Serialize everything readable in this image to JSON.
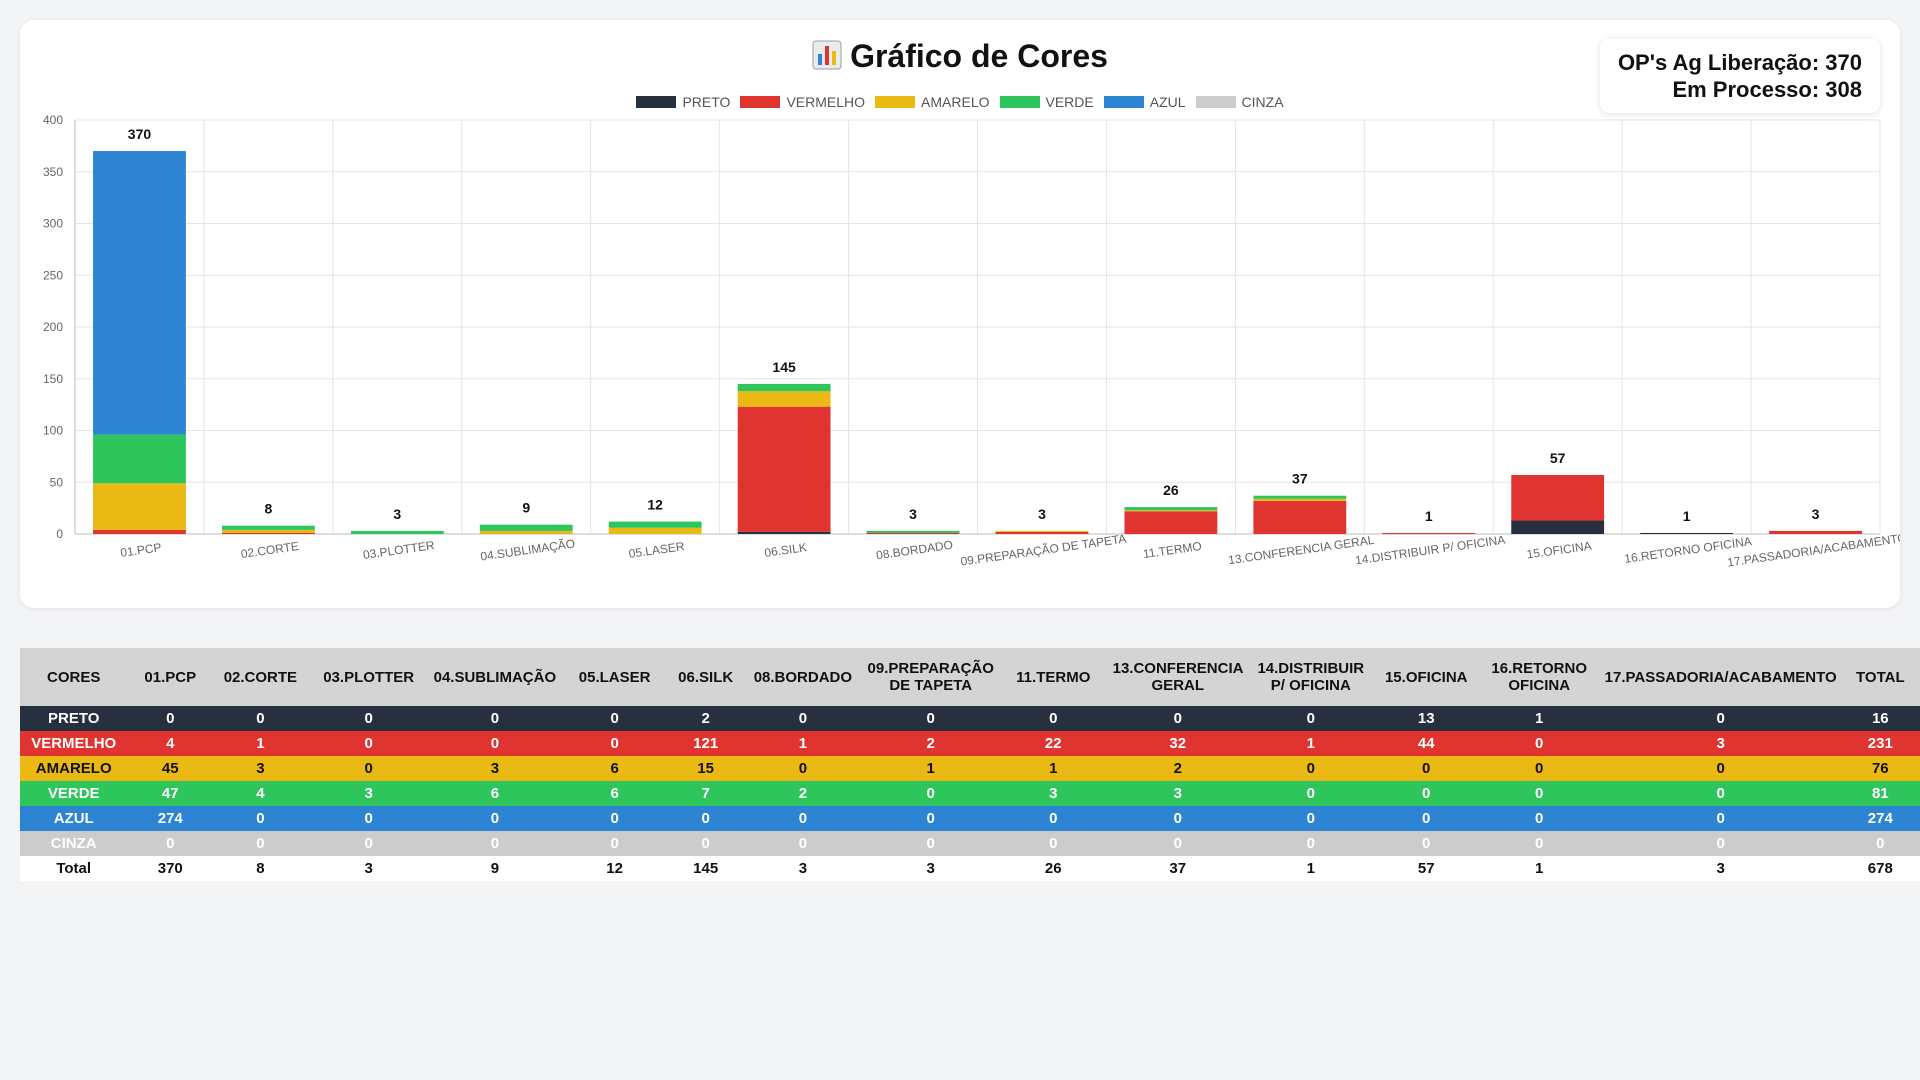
{
  "header": {
    "title": "Gráfico de Cores",
    "title_icon": "bar-chart-icon",
    "ag_liberacao": "OP's Ag Liberação: 370",
    "em_processo": "Em Processo: 308"
  },
  "colors": {
    "PRETO": "#26303e",
    "VERMELHO": "#e03430",
    "AMARELO": "#eab914",
    "VERDE": "#2ec55d",
    "AZUL": "#2c84d2",
    "CINZA": "#cccccc"
  },
  "chart_data": {
    "type": "bar",
    "stacked": true,
    "categories": [
      "01.PCP",
      "02.CORTE",
      "03.PLOTTER",
      "04.SUBLIMAÇÃO",
      "05.LASER",
      "06.SILK",
      "08.BORDADO",
      "09.PREPARAÇÃO DE TAPETA",
      "11.TERMO",
      "13.CONFERENCIA GERAL",
      "14.DISTRIBUIR P/ OFICINA",
      "15.OFICINA",
      "16.RETORNO OFICINA",
      "17.PASSADORIA/ACABAMENTO"
    ],
    "series": [
      {
        "name": "PRETO",
        "values": [
          0,
          0,
          0,
          0,
          0,
          2,
          0,
          0,
          0,
          0,
          0,
          13,
          1,
          0
        ]
      },
      {
        "name": "VERMELHO",
        "values": [
          4,
          1,
          0,
          0,
          0,
          121,
          1,
          2,
          22,
          32,
          1,
          44,
          0,
          3
        ]
      },
      {
        "name": "AMARELO",
        "values": [
          45,
          3,
          0,
          3,
          6,
          15,
          0,
          1,
          1,
          2,
          0,
          0,
          0,
          0
        ]
      },
      {
        "name": "VERDE",
        "values": [
          47,
          4,
          3,
          6,
          6,
          7,
          2,
          0,
          3,
          3,
          0,
          0,
          0,
          0
        ]
      },
      {
        "name": "AZUL",
        "values": [
          274,
          0,
          0,
          0,
          0,
          0,
          0,
          0,
          0,
          0,
          0,
          0,
          0,
          0
        ]
      },
      {
        "name": "CINZA",
        "values": [
          0,
          0,
          0,
          0,
          0,
          0,
          0,
          0,
          0,
          0,
          0,
          0,
          0,
          0
        ]
      }
    ],
    "totals": [
      370,
      8,
      3,
      9,
      12,
      145,
      3,
      3,
      26,
      37,
      1,
      57,
      1,
      3
    ],
    "ylim": [
      0,
      400
    ],
    "yticks": [
      0,
      50,
      100,
      150,
      200,
      250,
      300,
      350,
      400
    ],
    "legend_position": "top",
    "grid": true
  },
  "table": {
    "corner": "CORES",
    "headers": [
      "01.PCP",
      "02.CORTE",
      "03.PLOTTER",
      "04.SUBLIMAÇÃO",
      "05.LASER",
      "06.SILK",
      "08.BORDADO",
      "09.PREPARAÇÃO DE TAPETA",
      "11.TERMO",
      "13.CONFERENCIA GERAL",
      "14.DISTRIBUIR P/ OFICINA",
      "15.OFICINA",
      "16.RETORNO OFICINA",
      "17.PASSADORIA/ACABAMENTO",
      "TOTAL"
    ],
    "rows": [
      {
        "label": "PRETO",
        "values": [
          "0",
          "0",
          "0",
          "0",
          "0",
          "2",
          "0",
          "0",
          "0",
          "0",
          "0",
          "13",
          "1",
          "0",
          "16"
        ],
        "bg": "#26303e",
        "fg": "#ffffff"
      },
      {
        "label": "VERMELHO",
        "values": [
          "4",
          "1",
          "0",
          "0",
          "0",
          "121",
          "1",
          "2",
          "22",
          "32",
          "1",
          "44",
          "0",
          "3",
          "231"
        ],
        "bg": "#e03430",
        "fg": "#ffffff"
      },
      {
        "label": "AMARELO",
        "values": [
          "45",
          "3",
          "0",
          "3",
          "6",
          "15",
          "0",
          "1",
          "1",
          "2",
          "0",
          "0",
          "0",
          "0",
          "76"
        ],
        "bg": "#eab914",
        "fg": "#111111"
      },
      {
        "label": "VERDE",
        "values": [
          "47",
          "4",
          "3",
          "6",
          "6",
          "7",
          "2",
          "0",
          "3",
          "3",
          "0",
          "0",
          "0",
          "0",
          "81"
        ],
        "bg": "#2ec55d",
        "fg": "#ffffff"
      },
      {
        "label": "AZUL",
        "values": [
          "274",
          "0",
          "0",
          "0",
          "0",
          "0",
          "0",
          "0",
          "0",
          "0",
          "0",
          "0",
          "0",
          "0",
          "274"
        ],
        "bg": "#2c84d2",
        "fg": "#ffffff"
      },
      {
        "label": "CINZA",
        "values": [
          "0",
          "0",
          "0",
          "0",
          "0",
          "0",
          "0",
          "0",
          "0",
          "0",
          "0",
          "0",
          "0",
          "0",
          "0"
        ],
        "bg": "#cccccc",
        "fg": "#ffffff"
      },
      {
        "label": "Total",
        "values": [
          "370",
          "8",
          "3",
          "9",
          "12",
          "145",
          "3",
          "3",
          "26",
          "37",
          "1",
          "57",
          "1",
          "3",
          "678"
        ],
        "bg": "#ffffff",
        "fg": "#111111"
      }
    ]
  }
}
